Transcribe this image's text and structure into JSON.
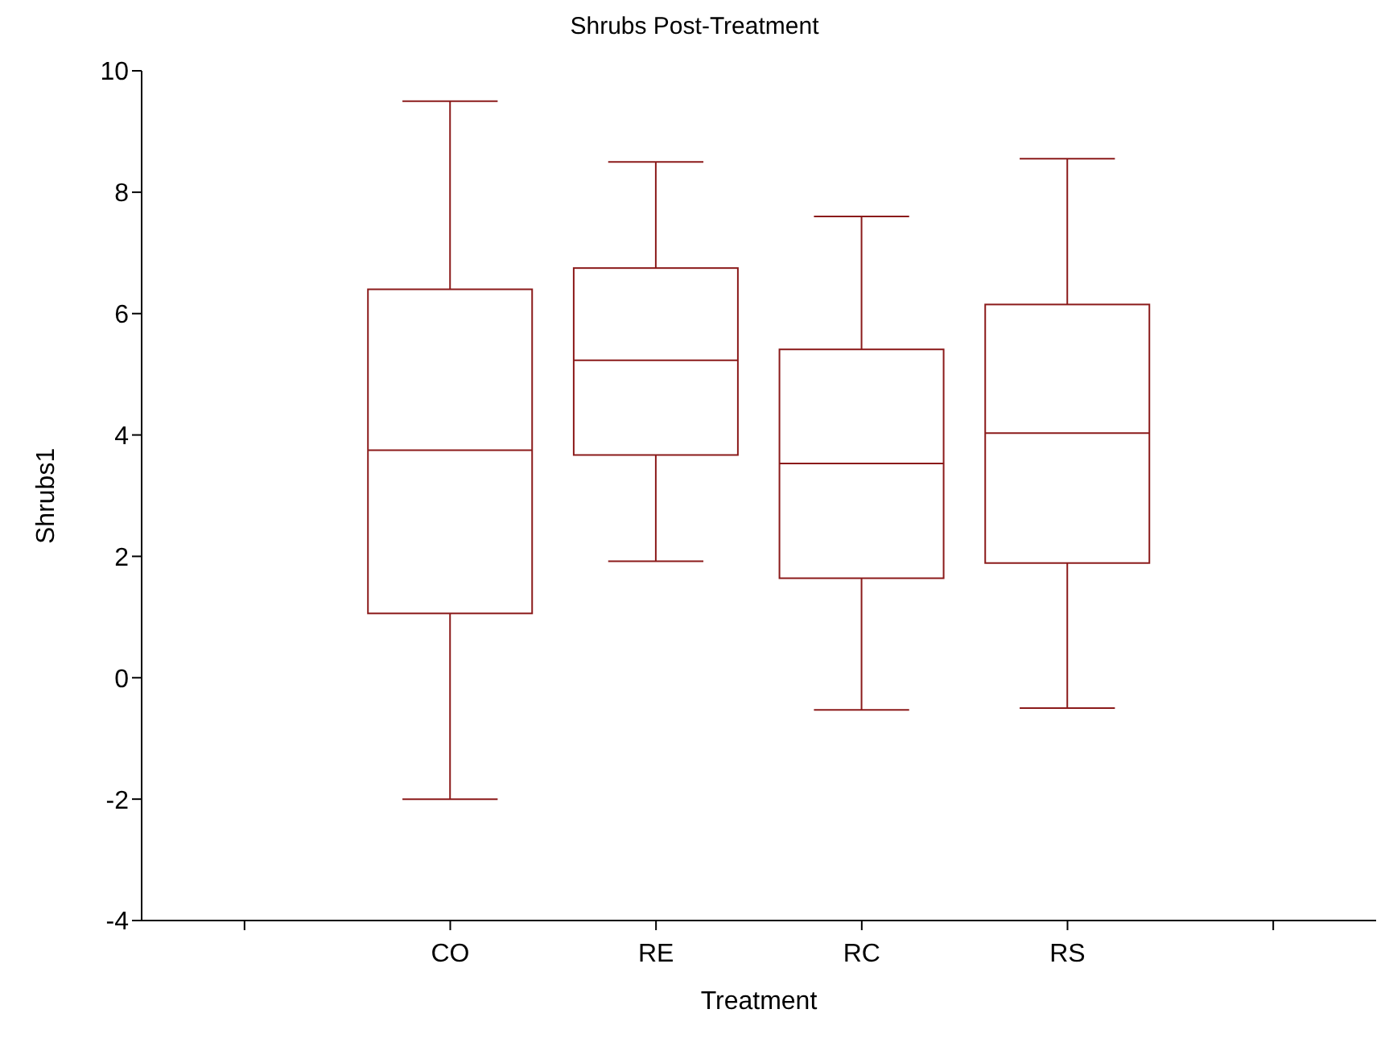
{
  "chart_data": {
    "type": "box",
    "title": "Shrubs Post-Treatment",
    "xlabel": "Treatment",
    "ylabel": "Shrubs1",
    "categories": [
      "CO",
      "RE",
      "RC",
      "RS"
    ],
    "color": "#8b1a1a",
    "ylim": [
      -4,
      10
    ],
    "yticks": [
      -4,
      -2,
      0,
      2,
      4,
      6,
      8,
      10
    ],
    "grid": false,
    "legend": false,
    "boxes": [
      {
        "low": -2,
        "q1": 1.06,
        "median": 3.75,
        "q3": 6.4,
        "high": 9.5
      },
      {
        "low": 1.92,
        "q1": 3.67,
        "median": 5.23,
        "q3": 6.75,
        "high": 8.5
      },
      {
        "low": -0.53,
        "q1": 1.64,
        "median": 3.53,
        "q3": 5.41,
        "high": 7.6
      },
      {
        "low": -0.5,
        "q1": 1.89,
        "median": 4.03,
        "q3": 6.15,
        "high": 8.55
      }
    ]
  }
}
